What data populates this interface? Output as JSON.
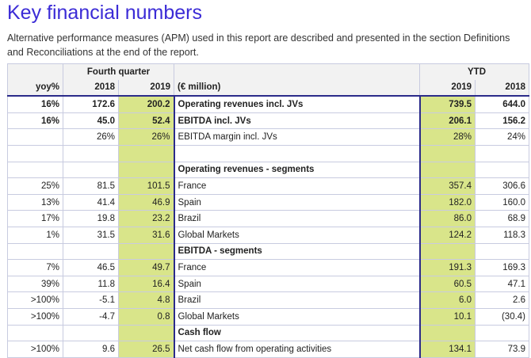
{
  "title": "Key financial numbers",
  "intro": "Alternative performance measures (APM) used in this report are described and presented in the section Definitions and Reconciliations at the end of the report.",
  "header": {
    "group_quarter": "Fourth quarter",
    "group_ytd": "YTD",
    "col_yoy": "yoy%",
    "col_q2018": "2018",
    "col_q2019": "2019",
    "col_label": "(€ million)",
    "col_ytd2019": "2019",
    "col_ytd2018": "2018"
  },
  "rows": [
    {
      "yoy": "16%",
      "q2018": "172.6",
      "q2019": "200.2",
      "label": "Operating revenues incl. JVs",
      "y2019": "739.5",
      "y2018": "644.0",
      "bold": true
    },
    {
      "yoy": "16%",
      "q2018": "45.0",
      "q2019": "52.4",
      "label": "EBITDA incl. JVs",
      "y2019": "206.1",
      "y2018": "156.2",
      "bold": true
    },
    {
      "yoy": "",
      "q2018": "26%",
      "q2019": "26%",
      "label": "EBITDA margin incl. JVs",
      "y2019": "28%",
      "y2018": "24%"
    },
    {
      "yoy": "",
      "q2018": "",
      "q2019": "",
      "label": "",
      "y2019": "",
      "y2018": ""
    },
    {
      "yoy": "",
      "q2018": "",
      "q2019": "",
      "label": "Operating revenues - segments",
      "y2019": "",
      "y2018": "",
      "section": true
    },
    {
      "yoy": "25%",
      "q2018": "81.5",
      "q2019": "101.5",
      "label": "France",
      "y2019": "357.4",
      "y2018": "306.6"
    },
    {
      "yoy": "13%",
      "q2018": "41.4",
      "q2019": "46.9",
      "label": "Spain",
      "y2019": "182.0",
      "y2018": "160.0"
    },
    {
      "yoy": "17%",
      "q2018": "19.8",
      "q2019": "23.2",
      "label": "Brazil",
      "y2019": "86.0",
      "y2018": "68.9"
    },
    {
      "yoy": "1%",
      "q2018": "31.5",
      "q2019": "31.6",
      "label": "Global Markets",
      "y2019": "124.2",
      "y2018": "118.3"
    },
    {
      "yoy": "",
      "q2018": "",
      "q2019": "",
      "label": "EBITDA - segments",
      "y2019": "",
      "y2018": "",
      "section": true
    },
    {
      "yoy": "7%",
      "q2018": "46.5",
      "q2019": "49.7",
      "label": "France",
      "y2019": "191.3",
      "y2018": "169.3"
    },
    {
      "yoy": "39%",
      "q2018": "11.8",
      "q2019": "16.4",
      "label": "Spain",
      "y2019": "60.5",
      "y2018": "47.1"
    },
    {
      "yoy": ">100%",
      "q2018": "-5.1",
      "q2019": "4.8",
      "label": "Brazil",
      "y2019": "6.0",
      "y2018": "2.6"
    },
    {
      "yoy": ">100%",
      "q2018": "-4.7",
      "q2019": "0.8",
      "label": "Global Markets",
      "y2019": "10.1",
      "y2018": "(30.4)"
    },
    {
      "yoy": "",
      "q2018": "",
      "q2019": "",
      "label": "Cash flow",
      "y2019": "",
      "y2018": "",
      "section": true
    },
    {
      "yoy": ">100%",
      "q2018": "9.6",
      "q2019": "26.5",
      "label": "Net cash flow from operating activities",
      "y2019": "134.1",
      "y2018": "73.9"
    }
  ],
  "colors": {
    "title": "#3b2bd6",
    "highlight": "#d9e58a",
    "header_bg": "#f2f2f2"
  }
}
